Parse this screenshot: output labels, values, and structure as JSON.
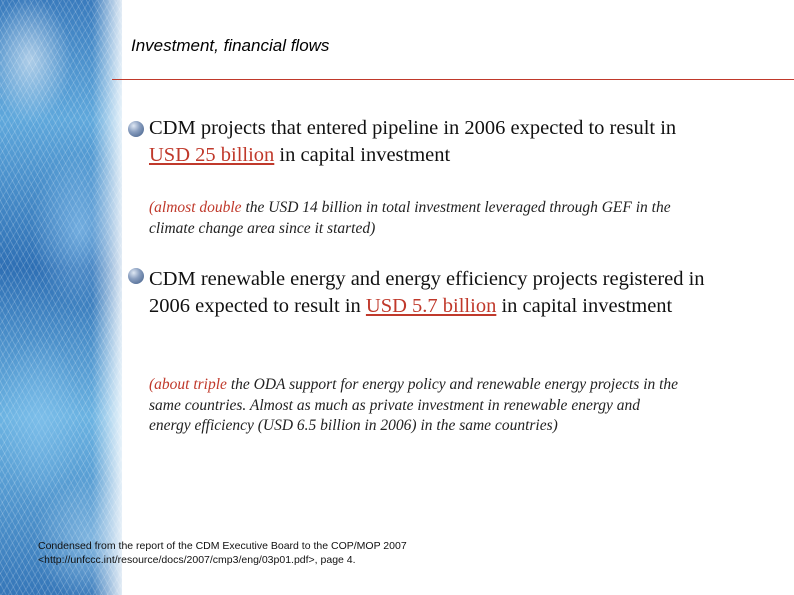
{
  "slide": {
    "title": "Investment, financial flows",
    "bullets": [
      {
        "text_before": "CDM projects that entered pipeline in 2006 expected to result in ",
        "highlight": "USD 25 billion",
        "text_after": " in capital investment",
        "note_highlight": "(almost double",
        "note_text": " the USD 14 billion in total investment leveraged through GEF in the climate change area since it started)"
      },
      {
        "text_before": "CDM renewable energy and energy efficiency projects registered in 2006 expected to result in ",
        "highlight": "USD 5.7 billion",
        "text_after": " in capital investment",
        "note_highlight": "(about triple",
        "note_text": " the ODA support for energy policy and renewable energy projects in the same countries. Almost as much as private investment in renewable energy and energy efficiency (USD 6.5 billion in 2006) in the same countries)"
      }
    ],
    "source": {
      "line1": "Condensed from the report of the CDM Executive Board to the COP/MOP 2007",
      "line2": "<http://unfccc.int/resource/docs/2007/cmp3/eng/03p01.pdf>, page 4."
    }
  }
}
